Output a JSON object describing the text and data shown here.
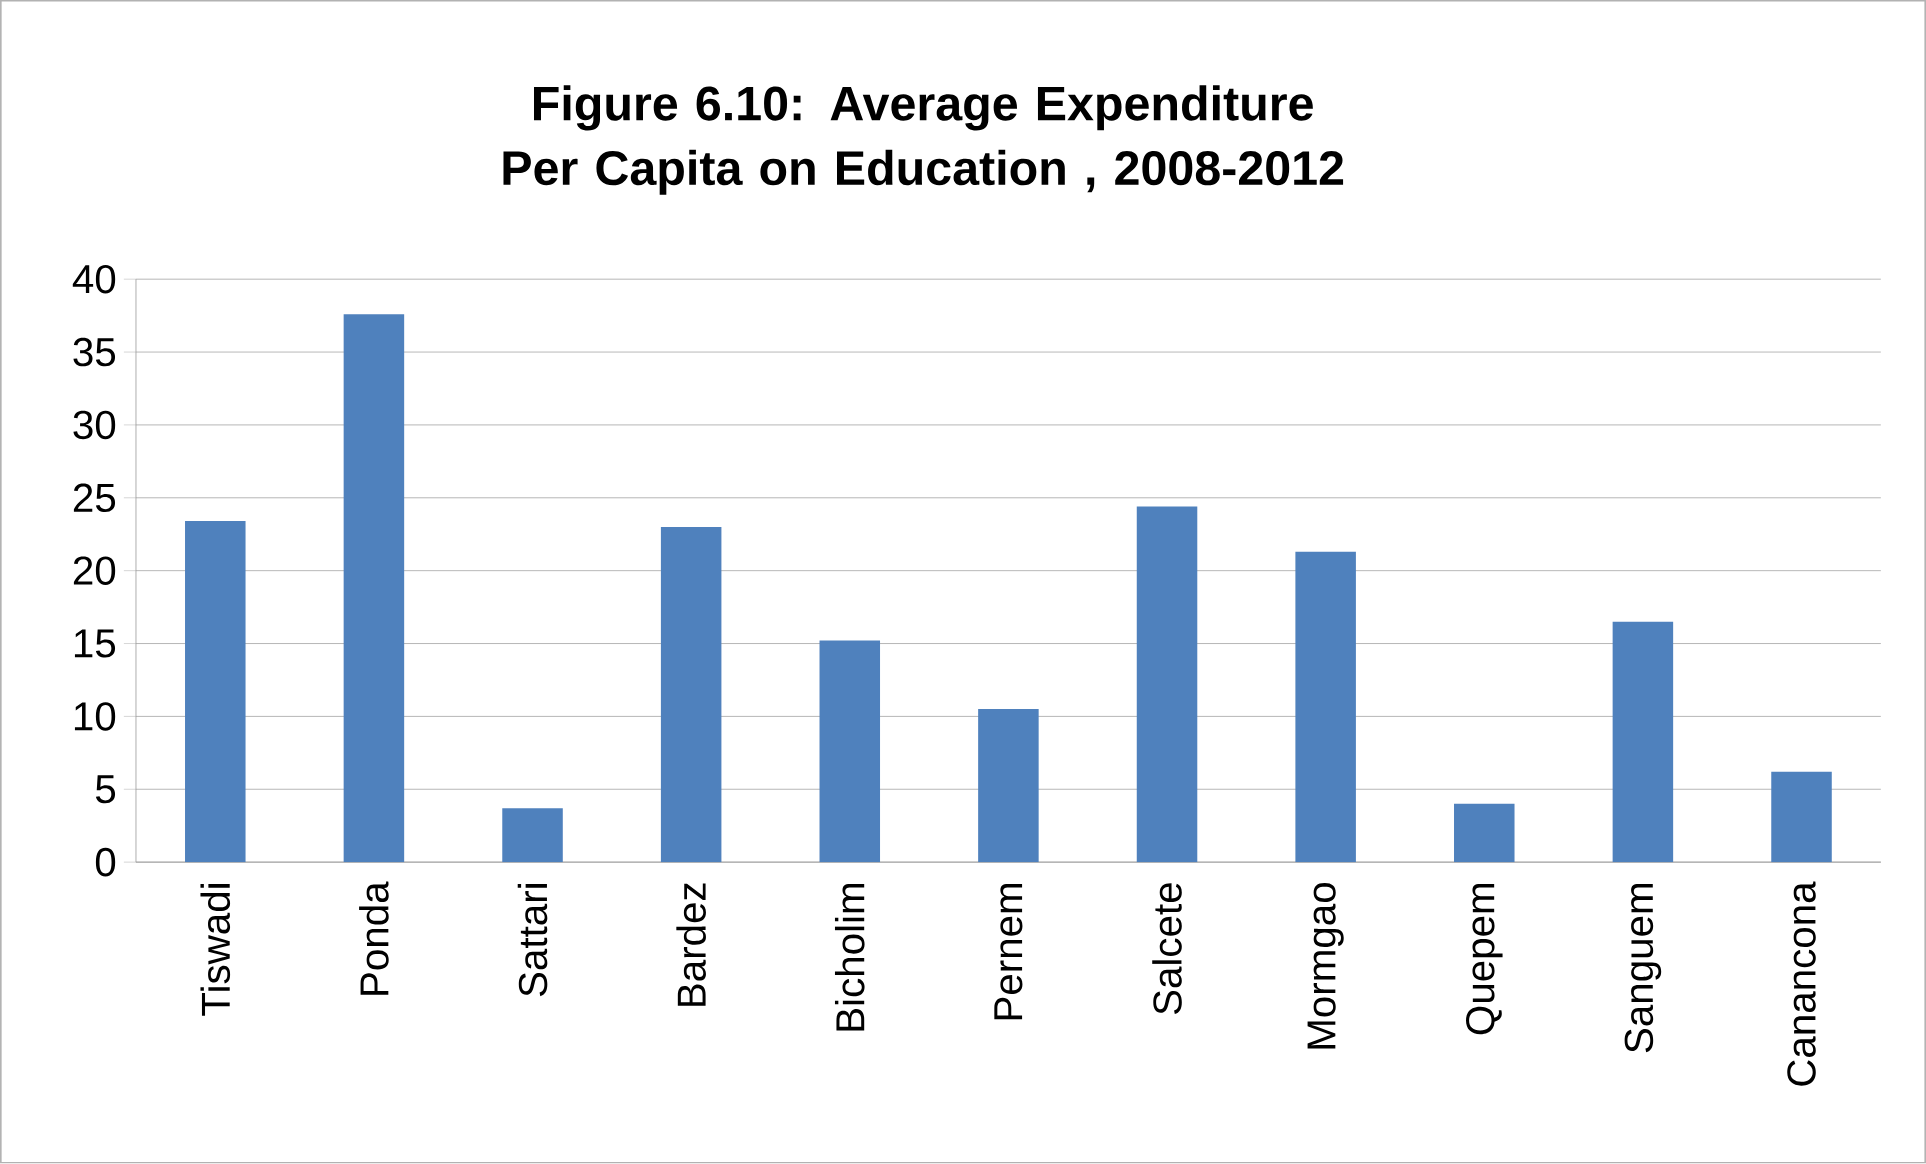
{
  "chart_data": {
    "type": "bar",
    "title": "Figure 6.10: Average Expenditure Per Capita on Education , 2008-2012",
    "categories": [
      "Tiswadi",
      "Ponda",
      "Sattari",
      "Bardez",
      "Bicholim",
      "Pernem",
      "Salcete",
      "Mormgao",
      "Quepem",
      "Sanguem",
      "Canancona"
    ],
    "values": [
      23.4,
      37.6,
      3.7,
      23.0,
      15.2,
      10.5,
      24.4,
      21.3,
      4.0,
      16.5,
      6.2
    ],
    "color": "#4f81bd",
    "ylim": [
      0,
      40
    ],
    "yticks": [
      0,
      5,
      10,
      15,
      20,
      25,
      30,
      35,
      40
    ],
    "grid": "y"
  }
}
